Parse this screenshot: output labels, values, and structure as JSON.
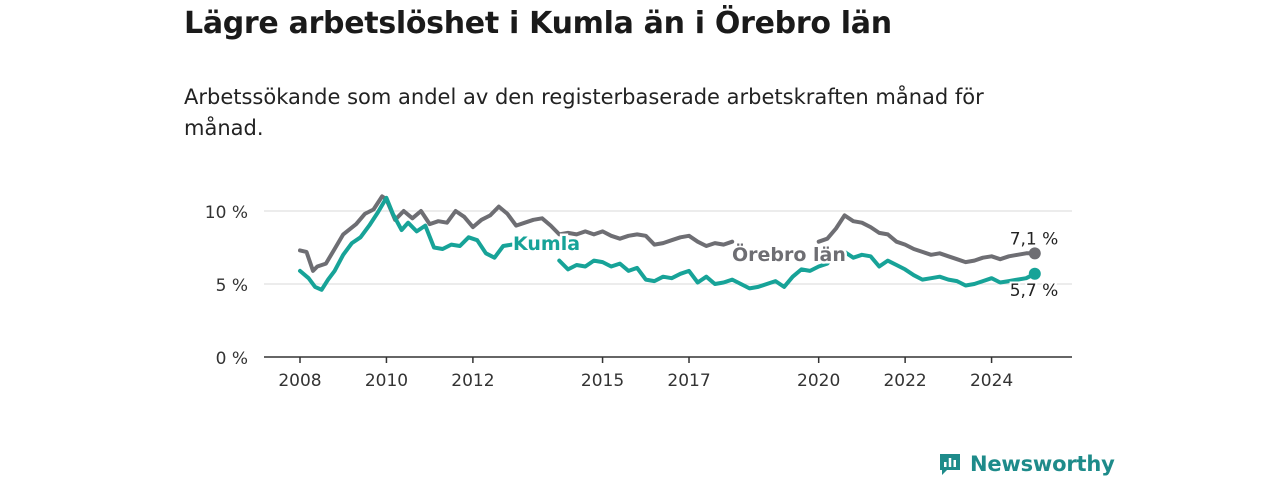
{
  "header": {
    "title": "Lägre arbetslöshet i Kumla än i Örebro län",
    "subtitle": "Arbetssökande som andel av den registerbaserade arbetskraften månad för månad."
  },
  "brand": {
    "name": "Newsworthy",
    "icon": "bar-chart-speech-icon",
    "color": "#1e8b8a"
  },
  "chart_data": {
    "type": "line",
    "title": "",
    "xlabel": "",
    "ylabel": "",
    "xlim": [
      2008,
      2025.8
    ],
    "ylim": [
      0,
      10
    ],
    "y_ticks": [
      0,
      5,
      10
    ],
    "y_tick_labels": [
      "0 %",
      "5 %",
      "10 %"
    ],
    "x_ticks": [
      2008,
      2010,
      2012,
      2015,
      2017,
      2020,
      2022,
      2024
    ],
    "x_tick_labels": [
      "2008",
      "2010",
      "2012",
      "2015",
      "2017",
      "2020",
      "2022",
      "2024"
    ],
    "grid": true,
    "legend": "inline labels",
    "series": [
      {
        "name": "Örebro län",
        "color": "#6e6e73",
        "end_label": "7,1 %",
        "x": [
          2008.0,
          2008.15,
          2008.3,
          2008.4,
          2008.6,
          2008.8,
          2009.0,
          2009.3,
          2009.5,
          2009.7,
          2009.9,
          2010.0,
          2010.2,
          2010.4,
          2010.6,
          2010.8,
          2011.0,
          2011.2,
          2011.4,
          2011.6,
          2011.8,
          2012.0,
          2012.2,
          2012.4,
          2012.6,
          2012.8,
          2013.0,
          2013.2,
          2013.4,
          2013.6,
          2013.8,
          2014.0,
          2014.2,
          2014.4,
          2014.6,
          2014.8,
          2015.0,
          2015.2,
          2015.4,
          2015.6,
          2015.8,
          2016.0,
          2016.2,
          2016.4,
          2016.6,
          2016.8,
          2017.0,
          2017.2,
          2017.4,
          2017.6,
          2017.8,
          2018.0
        ],
        "values": [
          7.3,
          7.2,
          5.9,
          6.2,
          6.4,
          7.4,
          8.4,
          9.1,
          9.8,
          10.1,
          11.0,
          10.8,
          9.4,
          10.0,
          9.5,
          10.0,
          9.1,
          9.3,
          9.2,
          10.0,
          9.6,
          8.9,
          9.4,
          9.7,
          10.3,
          9.8,
          9.0,
          9.2,
          9.4,
          9.5,
          9.0,
          8.4,
          8.5,
          8.4,
          8.6,
          8.4,
          8.6,
          8.3,
          8.1,
          8.3,
          8.4,
          8.3,
          7.7,
          7.8,
          8.0,
          8.2,
          8.3,
          7.9,
          7.6,
          7.8,
          7.7,
          7.9
        ],
        "x2": [
          2020.0,
          2020.2,
          2020.4,
          2020.6,
          2020.8,
          2021.0,
          2021.2,
          2021.4,
          2021.6,
          2021.8,
          2022.0,
          2022.2,
          2022.4,
          2022.6,
          2022.8,
          2023.0,
          2023.2,
          2023.4,
          2023.6,
          2023.8,
          2024.0,
          2024.2,
          2024.4,
          2024.6,
          2024.8,
          2025.0,
          2025.0
        ],
        "values2": [
          7.9,
          8.1,
          8.8,
          9.7,
          9.3,
          9.2,
          8.9,
          8.5,
          8.4,
          7.9,
          7.7,
          7.4,
          7.2,
          7.0,
          7.1,
          6.9,
          6.7,
          6.5,
          6.6,
          6.8,
          6.9,
          6.7,
          6.9,
          7.0,
          7.1,
          7.1,
          7.1
        ]
      },
      {
        "name": "Kumla",
        "color": "#17a398",
        "end_label": "5,7 %",
        "x": [
          2008.0,
          2008.2,
          2008.35,
          2008.5,
          2008.65,
          2008.8,
          2009.0,
          2009.2,
          2009.4,
          2009.6,
          2009.8,
          2010.0,
          2010.15,
          2010.35,
          2010.5,
          2010.7,
          2010.9,
          2011.1,
          2011.3,
          2011.5,
          2011.7,
          2011.9,
          2012.1,
          2012.3,
          2012.5,
          2012.7,
          2012.9
        ],
        "values": [
          5.9,
          5.4,
          4.8,
          4.6,
          5.3,
          5.9,
          7.0,
          7.8,
          8.2,
          9.0,
          9.9,
          10.9,
          9.8,
          8.7,
          9.2,
          8.6,
          9.0,
          7.5,
          7.4,
          7.7,
          7.6,
          8.2,
          8.0,
          7.1,
          6.8,
          7.6,
          7.7
        ],
        "x2": [
          2014.0,
          2014.2,
          2014.4,
          2014.6,
          2014.8,
          2015.0,
          2015.2,
          2015.4,
          2015.6,
          2015.8,
          2016.0,
          2016.2,
          2016.4,
          2016.6,
          2016.8,
          2017.0,
          2017.2,
          2017.4,
          2017.6,
          2017.8,
          2018.0,
          2018.2,
          2018.4,
          2018.6,
          2018.8,
          2019.0,
          2019.2,
          2019.4,
          2019.6,
          2019.8,
          2020.0,
          2020.2,
          2020.4,
          2020.6,
          2020.8,
          2021.0,
          2021.2,
          2021.4,
          2021.6,
          2021.8,
          2022.0,
          2022.2,
          2022.4,
          2022.6,
          2022.8,
          2023.0,
          2023.2,
          2023.4,
          2023.6,
          2023.8,
          2024.0,
          2024.2,
          2024.4,
          2024.6,
          2024.8,
          2025.0
        ],
        "values2": [
          6.6,
          6.0,
          6.3,
          6.2,
          6.6,
          6.5,
          6.2,
          6.4,
          5.9,
          6.1,
          5.3,
          5.2,
          5.5,
          5.4,
          5.7,
          5.9,
          5.1,
          5.5,
          5.0,
          5.1,
          5.3,
          5.0,
          4.7,
          4.8,
          5.0,
          5.2,
          4.8,
          5.5,
          6.0,
          5.9,
          6.2,
          6.4,
          7.1,
          7.2,
          6.8,
          7.0,
          6.9,
          6.2,
          6.6,
          6.3,
          6.0,
          5.6,
          5.3,
          5.4,
          5.5,
          5.3,
          5.2,
          4.9,
          5.0,
          5.2,
          5.4,
          5.1,
          5.2,
          5.3,
          5.4,
          5.7
        ]
      }
    ]
  }
}
